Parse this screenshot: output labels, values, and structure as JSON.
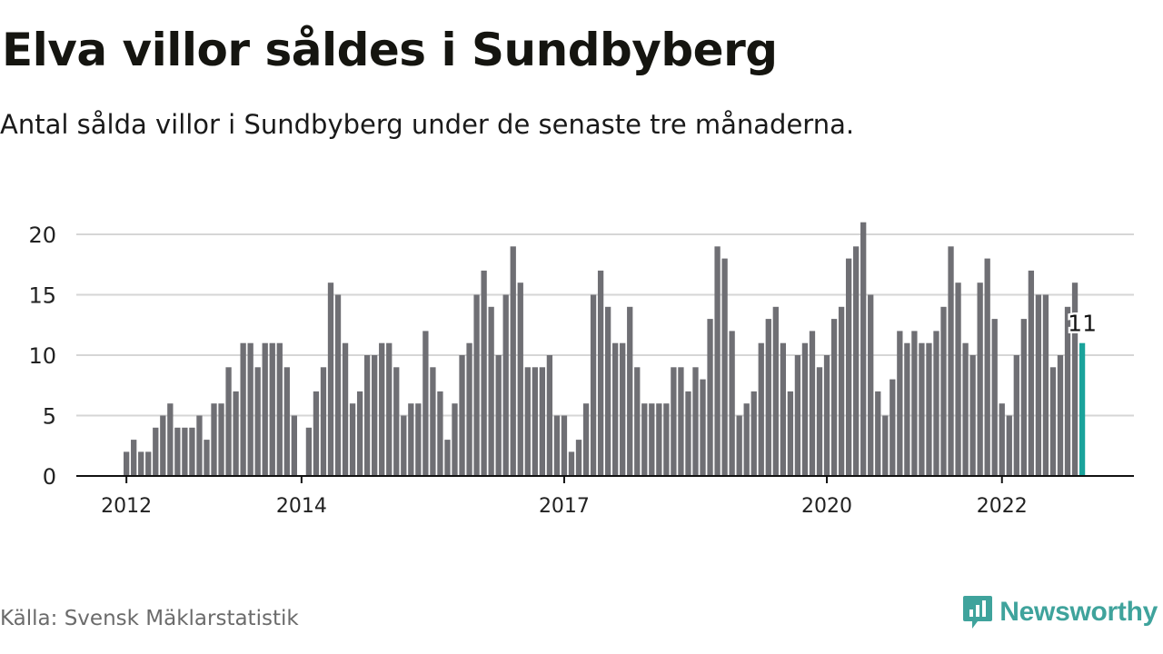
{
  "title": "Elva villor såldes i Sundbyberg",
  "subtitle": "Antal sålda villor i Sundbyberg under de senaste tre månaderna.",
  "source": "Källa: Svensk Mäklarstatistik",
  "brand": "Newsworthy",
  "colors": {
    "bar": "#6f6f74",
    "highlight": "#1aa39b",
    "grid": "#d6d6d6",
    "axis": "#111111",
    "brand": "#3fa39c"
  },
  "chart_data": {
    "type": "bar",
    "xlabel": "",
    "ylabel": "",
    "ylim": [
      0,
      21
    ],
    "yticks": [
      0,
      5,
      10,
      15,
      20
    ],
    "x_ticks": [
      {
        "label": "2012",
        "month": "2012-01"
      },
      {
        "label": "2014",
        "month": "2014-01"
      },
      {
        "label": "2017",
        "month": "2017-01"
      },
      {
        "label": "2020",
        "month": "2020-01"
      },
      {
        "label": "2022",
        "month": "2022-01"
      }
    ],
    "start_month": "2012-01",
    "values": [
      2,
      3,
      2,
      2,
      4,
      5,
      6,
      4,
      4,
      4,
      5,
      3,
      6,
      6,
      9,
      7,
      11,
      11,
      9,
      11,
      11,
      11,
      9,
      5,
      0,
      4,
      7,
      9,
      16,
      15,
      11,
      6,
      7,
      10,
      10,
      11,
      11,
      9,
      5,
      6,
      6,
      12,
      9,
      7,
      3,
      6,
      10,
      11,
      15,
      17,
      14,
      10,
      15,
      19,
      16,
      9,
      9,
      9,
      10,
      5,
      5,
      2,
      3,
      6,
      15,
      17,
      14,
      11,
      11,
      14,
      9,
      6,
      6,
      6,
      6,
      9,
      9,
      7,
      9,
      8,
      13,
      19,
      18,
      12,
      5,
      6,
      7,
      11,
      13,
      14,
      11,
      7,
      10,
      11,
      12,
      9,
      10,
      13,
      14,
      18,
      19,
      21,
      15,
      7,
      5,
      8,
      12,
      11,
      12,
      11,
      11,
      12,
      14,
      19,
      16,
      11,
      10,
      16,
      18,
      13,
      6,
      5,
      10,
      13,
      17,
      15,
      15,
      9,
      10,
      14,
      16,
      11
    ],
    "highlight_last": true,
    "annotation": {
      "text": "11"
    }
  }
}
